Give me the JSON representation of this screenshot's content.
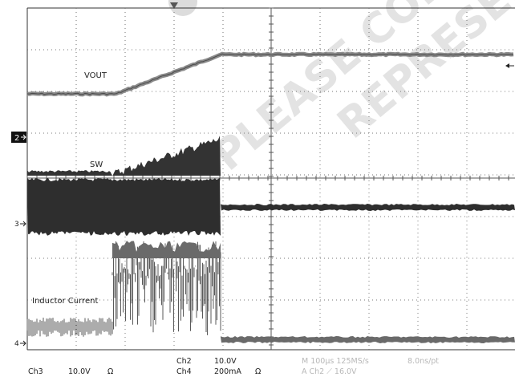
{
  "watermark": {
    "line1": "PLEASE CON",
    "line2": "REPRESEN"
  },
  "traces": {
    "vout": {
      "label": "VOUT"
    },
    "sw": {
      "label": "SW"
    },
    "inductor": {
      "label": "Inductor Current"
    }
  },
  "markers": {
    "ch2": "2",
    "ch3": "3",
    "ch4": "4"
  },
  "status": {
    "ch3": "Ch3",
    "ch3_scale": "10.0V",
    "ch3_coupling": "Ω",
    "ch2": "Ch2",
    "ch2_scale": "10.0V",
    "ch4": "Ch4",
    "ch4_scale": "200mA",
    "ch4_coupling": "Ω",
    "timebase": "M 100µs 125MS/s",
    "sample": "8.0ns/pt",
    "trigger": "A  Ch2  ⟋  16.0V"
  },
  "colors": {
    "trace": "#3c3c3c",
    "vout_trace": "#8a8a8a",
    "grid": "#555555",
    "watermark": "#e3e3e3"
  }
}
